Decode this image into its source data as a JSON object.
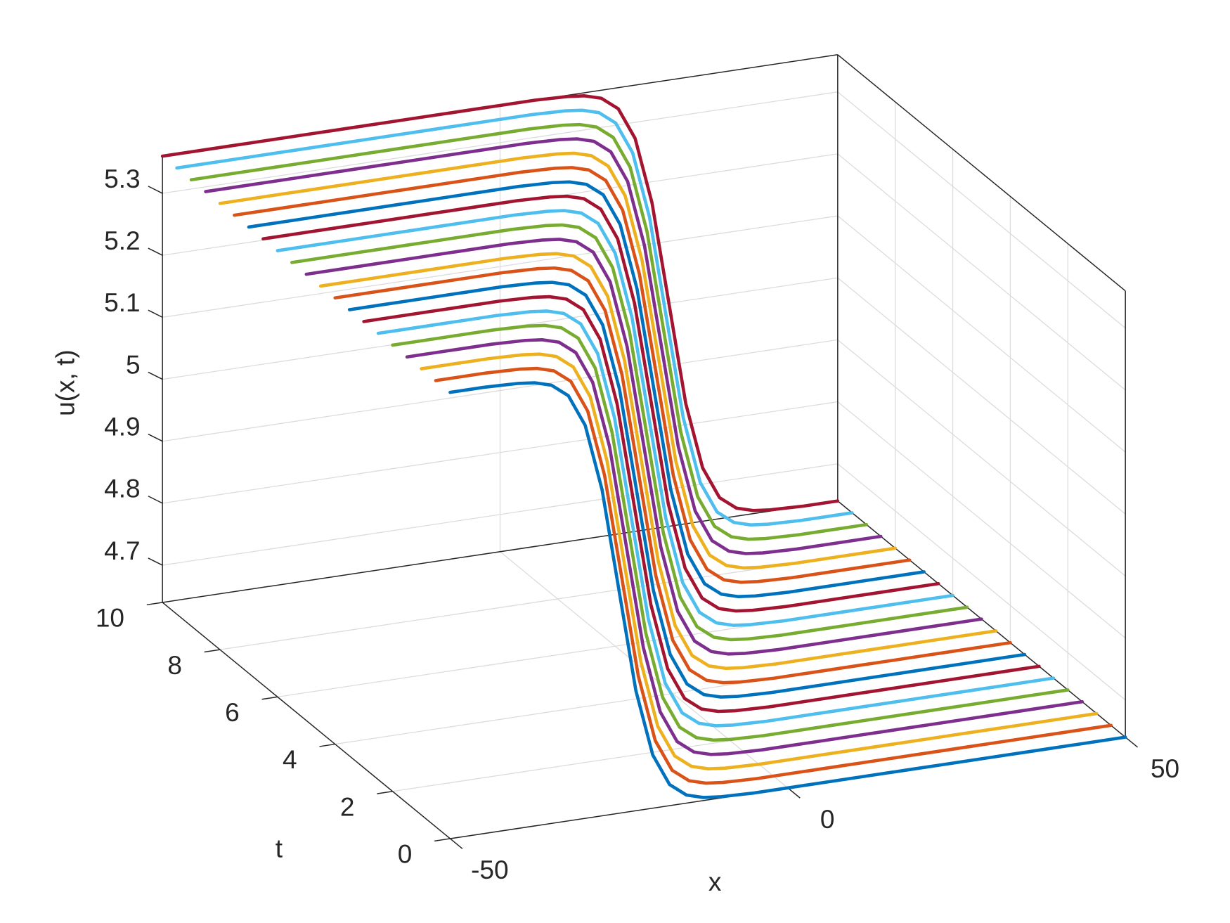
{
  "chart_data": {
    "type": "line3d",
    "xlabel": "x",
    "ylabel": "t",
    "zlabel": "u(x, t)",
    "xlim": [
      -50,
      50
    ],
    "xticks": [
      -50,
      0,
      50
    ],
    "ylim": [
      0,
      10
    ],
    "yticks": [
      0,
      2,
      4,
      6,
      8,
      10
    ],
    "zlim": [
      4.64,
      5.36
    ],
    "zticks": [
      4.7,
      4.8,
      4.9,
      5,
      5.1,
      5.2,
      5.3
    ],
    "grid": true,
    "x": [
      -50,
      -47.5,
      -45,
      -42.5,
      -40,
      -37.5,
      -35,
      -32.5,
      -30,
      -27.5,
      -25,
      -22.5,
      -20,
      -17.5,
      -15,
      -12.5,
      -10,
      -7.5,
      -5,
      -2.5,
      0,
      2.5,
      5,
      7.5,
      10,
      12.5,
      15,
      17.5,
      20,
      22.5,
      25,
      27.5,
      30,
      32.5,
      35,
      37.5,
      40,
      42.5,
      45,
      47.5,
      50
    ],
    "series": [
      {
        "color": "#0072BD",
        "t": 0,
        "values": [
          5.36,
          5.36,
          5.36,
          5.359,
          5.358,
          5.355,
          5.347,
          5.326,
          5.274,
          5.166,
          5,
          4.834,
          4.726,
          4.674,
          4.653,
          4.645,
          4.642,
          4.641,
          4.64,
          4.64,
          4.64,
          4.64,
          4.64,
          4.64,
          4.64,
          4.64,
          4.64,
          4.64,
          4.64,
          4.64,
          4.64,
          4.64,
          4.64,
          4.64,
          4.64,
          4.64,
          4.64,
          4.64,
          4.64,
          4.64,
          4.64
        ]
      },
      {
        "color": "#D95319",
        "t": 0.5,
        "values": [
          5.36,
          5.36,
          5.36,
          5.36,
          5.359,
          5.358,
          5.355,
          5.347,
          5.326,
          5.274,
          5.166,
          5,
          4.834,
          4.726,
          4.674,
          4.653,
          4.645,
          4.642,
          4.641,
          4.64,
          4.64,
          4.64,
          4.64,
          4.64,
          4.64,
          4.64,
          4.64,
          4.64,
          4.64,
          4.64,
          4.64,
          4.64,
          4.64,
          4.64,
          4.64,
          4.64,
          4.64,
          4.64,
          4.64,
          4.64,
          4.64
        ]
      },
      {
        "color": "#EDB120",
        "t": 1,
        "values": [
          5.36,
          5.36,
          5.36,
          5.36,
          5.36,
          5.359,
          5.358,
          5.355,
          5.347,
          5.326,
          5.274,
          5.166,
          5,
          4.834,
          4.726,
          4.674,
          4.653,
          4.645,
          4.642,
          4.641,
          4.64,
          4.64,
          4.64,
          4.64,
          4.64,
          4.64,
          4.64,
          4.64,
          4.64,
          4.64,
          4.64,
          4.64,
          4.64,
          4.64,
          4.64,
          4.64,
          4.64,
          4.64,
          4.64,
          4.64,
          4.64
        ]
      },
      {
        "color": "#7E2F8E",
        "t": 1.5,
        "values": [
          5.36,
          5.36,
          5.36,
          5.36,
          5.36,
          5.36,
          5.359,
          5.358,
          5.355,
          5.347,
          5.326,
          5.274,
          5.166,
          5,
          4.834,
          4.726,
          4.674,
          4.653,
          4.645,
          4.642,
          4.641,
          4.64,
          4.64,
          4.64,
          4.64,
          4.64,
          4.64,
          4.64,
          4.64,
          4.64,
          4.64,
          4.64,
          4.64,
          4.64,
          4.64,
          4.64,
          4.64,
          4.64,
          4.64,
          4.64,
          4.64
        ]
      },
      {
        "color": "#77AC30",
        "t": 2,
        "values": [
          5.36,
          5.36,
          5.36,
          5.36,
          5.36,
          5.36,
          5.36,
          5.359,
          5.358,
          5.355,
          5.347,
          5.326,
          5.274,
          5.166,
          5,
          4.834,
          4.726,
          4.674,
          4.653,
          4.645,
          4.642,
          4.641,
          4.64,
          4.64,
          4.64,
          4.64,
          4.64,
          4.64,
          4.64,
          4.64,
          4.64,
          4.64,
          4.64,
          4.64,
          4.64,
          4.64,
          4.64,
          4.64,
          4.64,
          4.64,
          4.64
        ]
      },
      {
        "color": "#4DBEEE",
        "t": 2.5,
        "values": [
          5.36,
          5.36,
          5.36,
          5.36,
          5.36,
          5.36,
          5.36,
          5.36,
          5.359,
          5.358,
          5.355,
          5.347,
          5.326,
          5.274,
          5.166,
          5,
          4.834,
          4.726,
          4.674,
          4.653,
          4.645,
          4.642,
          4.641,
          4.64,
          4.64,
          4.64,
          4.64,
          4.64,
          4.64,
          4.64,
          4.64,
          4.64,
          4.64,
          4.64,
          4.64,
          4.64,
          4.64,
          4.64,
          4.64,
          4.64,
          4.64
        ]
      },
      {
        "color": "#A2142F",
        "t": 3,
        "values": [
          5.36,
          5.36,
          5.36,
          5.36,
          5.36,
          5.36,
          5.36,
          5.36,
          5.36,
          5.359,
          5.358,
          5.355,
          5.347,
          5.326,
          5.274,
          5.166,
          5,
          4.834,
          4.726,
          4.674,
          4.653,
          4.645,
          4.642,
          4.641,
          4.64,
          4.64,
          4.64,
          4.64,
          4.64,
          4.64,
          4.64,
          4.64,
          4.64,
          4.64,
          4.64,
          4.64,
          4.64,
          4.64,
          4.64,
          4.64,
          4.64
        ]
      },
      {
        "color": "#0072BD",
        "t": 3.5,
        "values": [
          5.36,
          5.36,
          5.36,
          5.36,
          5.36,
          5.36,
          5.36,
          5.36,
          5.36,
          5.36,
          5.359,
          5.358,
          5.355,
          5.347,
          5.326,
          5.274,
          5.166,
          5,
          4.834,
          4.726,
          4.674,
          4.653,
          4.645,
          4.642,
          4.641,
          4.64,
          4.64,
          4.64,
          4.64,
          4.64,
          4.64,
          4.64,
          4.64,
          4.64,
          4.64,
          4.64,
          4.64,
          4.64,
          4.64,
          4.64,
          4.64
        ]
      },
      {
        "color": "#D95319",
        "t": 4,
        "values": [
          5.36,
          5.36,
          5.36,
          5.36,
          5.36,
          5.36,
          5.36,
          5.36,
          5.36,
          5.36,
          5.36,
          5.359,
          5.358,
          5.355,
          5.347,
          5.326,
          5.274,
          5.166,
          5,
          4.834,
          4.726,
          4.674,
          4.653,
          4.645,
          4.642,
          4.641,
          4.64,
          4.64,
          4.64,
          4.64,
          4.64,
          4.64,
          4.64,
          4.64,
          4.64,
          4.64,
          4.64,
          4.64,
          4.64,
          4.64,
          4.64
        ]
      },
      {
        "color": "#EDB120",
        "t": 4.5,
        "values": [
          5.36,
          5.36,
          5.36,
          5.36,
          5.36,
          5.36,
          5.36,
          5.36,
          5.36,
          5.36,
          5.36,
          5.36,
          5.359,
          5.358,
          5.355,
          5.347,
          5.326,
          5.274,
          5.166,
          5,
          4.834,
          4.726,
          4.674,
          4.653,
          4.645,
          4.642,
          4.641,
          4.64,
          4.64,
          4.64,
          4.64,
          4.64,
          4.64,
          4.64,
          4.64,
          4.64,
          4.64,
          4.64,
          4.64,
          4.64,
          4.64
        ]
      },
      {
        "color": "#7E2F8E",
        "t": 5,
        "values": [
          5.36,
          5.36,
          5.36,
          5.36,
          5.36,
          5.36,
          5.36,
          5.36,
          5.36,
          5.36,
          5.36,
          5.36,
          5.36,
          5.359,
          5.358,
          5.355,
          5.347,
          5.326,
          5.274,
          5.166,
          5,
          4.834,
          4.726,
          4.674,
          4.653,
          4.645,
          4.642,
          4.641,
          4.64,
          4.64,
          4.64,
          4.64,
          4.64,
          4.64,
          4.64,
          4.64,
          4.64,
          4.64,
          4.64,
          4.64,
          4.64
        ]
      },
      {
        "color": "#77AC30",
        "t": 5.5,
        "values": [
          5.36,
          5.36,
          5.36,
          5.36,
          5.36,
          5.36,
          5.36,
          5.36,
          5.36,
          5.36,
          5.36,
          5.36,
          5.36,
          5.36,
          5.359,
          5.358,
          5.355,
          5.347,
          5.326,
          5.274,
          5.166,
          5,
          4.834,
          4.726,
          4.674,
          4.653,
          4.645,
          4.642,
          4.641,
          4.64,
          4.64,
          4.64,
          4.64,
          4.64,
          4.64,
          4.64,
          4.64,
          4.64,
          4.64,
          4.64,
          4.64
        ]
      },
      {
        "color": "#4DBEEE",
        "t": 6,
        "values": [
          5.36,
          5.36,
          5.36,
          5.36,
          5.36,
          5.36,
          5.36,
          5.36,
          5.36,
          5.36,
          5.36,
          5.36,
          5.36,
          5.36,
          5.36,
          5.359,
          5.358,
          5.355,
          5.347,
          5.326,
          5.274,
          5.166,
          5,
          4.834,
          4.726,
          4.674,
          4.653,
          4.645,
          4.642,
          4.641,
          4.64,
          4.64,
          4.64,
          4.64,
          4.64,
          4.64,
          4.64,
          4.64,
          4.64,
          4.64,
          4.64
        ]
      },
      {
        "color": "#A2142F",
        "t": 6.5,
        "values": [
          5.36,
          5.36,
          5.36,
          5.36,
          5.36,
          5.36,
          5.36,
          5.36,
          5.36,
          5.36,
          5.36,
          5.36,
          5.36,
          5.36,
          5.36,
          5.36,
          5.359,
          5.358,
          5.355,
          5.347,
          5.326,
          5.274,
          5.166,
          5,
          4.834,
          4.726,
          4.674,
          4.653,
          4.645,
          4.642,
          4.641,
          4.64,
          4.64,
          4.64,
          4.64,
          4.64,
          4.64,
          4.64,
          4.64,
          4.64,
          4.64
        ]
      },
      {
        "color": "#0072BD",
        "t": 7,
        "values": [
          5.36,
          5.36,
          5.36,
          5.36,
          5.36,
          5.36,
          5.36,
          5.36,
          5.36,
          5.36,
          5.36,
          5.36,
          5.36,
          5.36,
          5.36,
          5.36,
          5.36,
          5.359,
          5.358,
          5.355,
          5.347,
          5.326,
          5.274,
          5.166,
          5,
          4.834,
          4.726,
          4.674,
          4.653,
          4.645,
          4.642,
          4.641,
          4.64,
          4.64,
          4.64,
          4.64,
          4.64,
          4.64,
          4.64,
          4.64,
          4.64
        ]
      },
      {
        "color": "#D95319",
        "t": 7.5,
        "values": [
          5.36,
          5.36,
          5.36,
          5.36,
          5.36,
          5.36,
          5.36,
          5.36,
          5.36,
          5.36,
          5.36,
          5.36,
          5.36,
          5.36,
          5.36,
          5.36,
          5.36,
          5.36,
          5.359,
          5.358,
          5.355,
          5.347,
          5.326,
          5.274,
          5.166,
          5,
          4.834,
          4.726,
          4.674,
          4.653,
          4.645,
          4.642,
          4.641,
          4.64,
          4.64,
          4.64,
          4.64,
          4.64,
          4.64,
          4.64,
          4.64
        ]
      },
      {
        "color": "#EDB120",
        "t": 8,
        "values": [
          5.36,
          5.36,
          5.36,
          5.36,
          5.36,
          5.36,
          5.36,
          5.36,
          5.36,
          5.36,
          5.36,
          5.36,
          5.36,
          5.36,
          5.36,
          5.36,
          5.36,
          5.36,
          5.36,
          5.359,
          5.358,
          5.355,
          5.347,
          5.326,
          5.274,
          5.166,
          5,
          4.834,
          4.726,
          4.674,
          4.653,
          4.645,
          4.642,
          4.641,
          4.64,
          4.64,
          4.64,
          4.64,
          4.64,
          4.64,
          4.64
        ]
      },
      {
        "color": "#7E2F8E",
        "t": 8.5,
        "values": [
          5.36,
          5.36,
          5.36,
          5.36,
          5.36,
          5.36,
          5.36,
          5.36,
          5.36,
          5.36,
          5.36,
          5.36,
          5.36,
          5.36,
          5.36,
          5.36,
          5.36,
          5.36,
          5.36,
          5.36,
          5.359,
          5.358,
          5.355,
          5.347,
          5.326,
          5.274,
          5.166,
          5,
          4.834,
          4.726,
          4.674,
          4.653,
          4.645,
          4.642,
          4.641,
          4.64,
          4.64,
          4.64,
          4.64,
          4.64,
          4.64
        ]
      },
      {
        "color": "#77AC30",
        "t": 9,
        "values": [
          5.36,
          5.36,
          5.36,
          5.36,
          5.36,
          5.36,
          5.36,
          5.36,
          5.36,
          5.36,
          5.36,
          5.36,
          5.36,
          5.36,
          5.36,
          5.36,
          5.36,
          5.36,
          5.36,
          5.36,
          5.36,
          5.359,
          5.358,
          5.355,
          5.347,
          5.326,
          5.274,
          5.166,
          5,
          4.834,
          4.726,
          4.674,
          4.653,
          4.645,
          4.642,
          4.641,
          4.64,
          4.64,
          4.64,
          4.64,
          4.64
        ]
      },
      {
        "color": "#4DBEEE",
        "t": 9.5,
        "values": [
          5.36,
          5.36,
          5.36,
          5.36,
          5.36,
          5.36,
          5.36,
          5.36,
          5.36,
          5.36,
          5.36,
          5.36,
          5.36,
          5.36,
          5.36,
          5.36,
          5.36,
          5.36,
          5.36,
          5.36,
          5.36,
          5.36,
          5.359,
          5.358,
          5.355,
          5.347,
          5.326,
          5.274,
          5.166,
          5,
          4.834,
          4.726,
          4.674,
          4.653,
          4.645,
          4.642,
          4.641,
          4.64,
          4.64,
          4.64,
          4.64
        ]
      },
      {
        "color": "#A2142F",
        "t": 10,
        "values": [
          5.36,
          5.36,
          5.36,
          5.36,
          5.36,
          5.36,
          5.36,
          5.36,
          5.36,
          5.36,
          5.36,
          5.36,
          5.36,
          5.36,
          5.36,
          5.36,
          5.36,
          5.36,
          5.36,
          5.36,
          5.36,
          5.36,
          5.36,
          5.359,
          5.358,
          5.355,
          5.347,
          5.326,
          5.274,
          5.166,
          5,
          4.834,
          4.726,
          4.674,
          4.653,
          4.645,
          4.642,
          4.641,
          4.64,
          4.64,
          4.64
        ]
      }
    ]
  }
}
